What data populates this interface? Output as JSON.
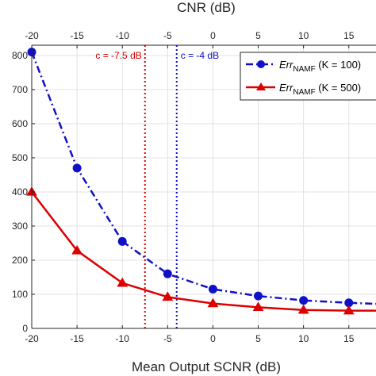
{
  "chart_data": {
    "type": "line",
    "xlabel": "Mean Output SCNR (dB)",
    "x2label": "CNR (dB)",
    "xlim": [
      -20,
      18
    ],
    "ylim": [
      0,
      830
    ],
    "x_ticks": [
      "-20",
      "-15",
      "-10",
      "-5",
      "0",
      "5",
      "10",
      "15"
    ],
    "x_tick_values": [
      -20,
      -15,
      -10,
      -5,
      0,
      5,
      10,
      15
    ],
    "x2_ticks": [
      "-20",
      "-15",
      "-10",
      "-5",
      "0",
      "5",
      "10",
      "15"
    ],
    "y_ticks": [
      "0",
      "100",
      "200",
      "300",
      "400",
      "500",
      "600",
      "700",
      "800"
    ],
    "y_tick_values": [
      0,
      100,
      200,
      300,
      400,
      500,
      600,
      700,
      800
    ],
    "grid": true,
    "legend_position": "top-right",
    "series": [
      {
        "name_main": "Err",
        "name_sub": "NAMF",
        "name_rest": " (K = 100)",
        "color": "#1010c8",
        "line_style": "dash-dot",
        "marker": "circle",
        "x": [
          -20,
          -15,
          -10,
          -5,
          0,
          5,
          10,
          15,
          18
        ],
        "y": [
          810,
          470,
          255,
          160,
          115,
          95,
          82,
          75,
          72
        ]
      },
      {
        "name_main": "Err",
        "name_sub": "NAMF",
        "name_rest": " (K = 500)",
        "color": "#dd0000",
        "line_style": "solid",
        "marker": "triangle",
        "x": [
          -20,
          -15,
          -10,
          -5,
          0,
          5,
          10,
          15,
          18
        ],
        "y": [
          400,
          228,
          133,
          92,
          73,
          62,
          54,
          52,
          52
        ]
      }
    ],
    "vlines": [
      {
        "x": -7.5,
        "label": "c = -7.5 dB",
        "color": "#dd0000"
      },
      {
        "x": -4,
        "label": "c = -4 dB",
        "color": "#1010c8"
      }
    ]
  }
}
